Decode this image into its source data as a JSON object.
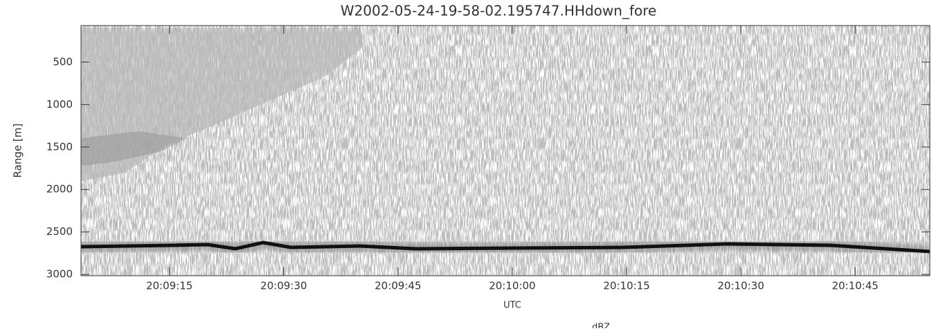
{
  "chart_data": {
    "type": "image",
    "title": "W2002-05-24-19-58-02.195747.HHdown_fore",
    "y_label": "Range [m]",
    "x_label": "UTC",
    "colorbar_label": "dBZ",
    "ylim": [
      3015,
      70
    ],
    "yticks": [
      500,
      1000,
      1500,
      2000,
      2500,
      3000
    ],
    "xlim": [
      72543.4,
      72654.8
    ],
    "xticks": [
      {
        "value": 72555,
        "label": "20:09:15"
      },
      {
        "value": 72570,
        "label": "20:09:30"
      },
      {
        "value": 72585,
        "label": "20:09:45"
      },
      {
        "value": 72600,
        "label": "20:10:00"
      },
      {
        "value": 72615,
        "label": "20:10:15"
      },
      {
        "value": 72630,
        "label": "20:10:30"
      },
      {
        "value": 72645,
        "label": "20:10:45"
      }
    ]
  }
}
